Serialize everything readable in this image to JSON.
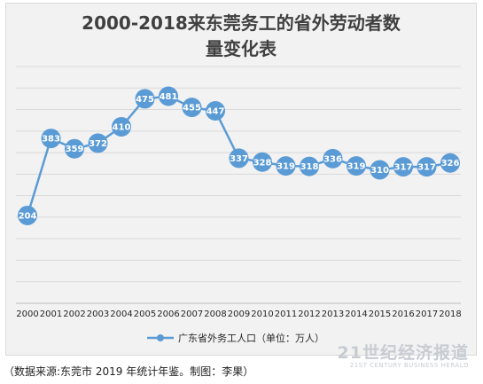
{
  "chart_data": {
    "type": "line",
    "title_lines": [
      "2000-2018来东莞务工的省外劳动者数",
      "量变化表"
    ],
    "categories": [
      "2000",
      "2001",
      "2002",
      "2003",
      "2004",
      "2005",
      "2006",
      "2007",
      "2008",
      "2009",
      "2010",
      "2011",
      "2012",
      "2013",
      "2014",
      "2015",
      "2016",
      "2017",
      "2018"
    ],
    "series": [
      {
        "name": "广东省外务工人口（单位：万人）",
        "values": [
          204,
          383,
          359,
          372,
          410,
          475,
          481,
          455,
          447,
          337,
          328,
          319,
          318,
          336,
          319,
          310,
          317,
          317,
          326
        ]
      }
    ],
    "ylim": [
      0,
      550
    ],
    "grid": true,
    "legend_position": "bottom",
    "line_color": "#5b9bd5",
    "marker_color": "#5b9bd5"
  },
  "source_note": "（数据来源:东莞市 2019 年统计年鉴。制图：李果）",
  "watermark": {
    "main": "21世纪经济报道",
    "sub": "21ST CENTURY BUSINESS HERALD"
  }
}
